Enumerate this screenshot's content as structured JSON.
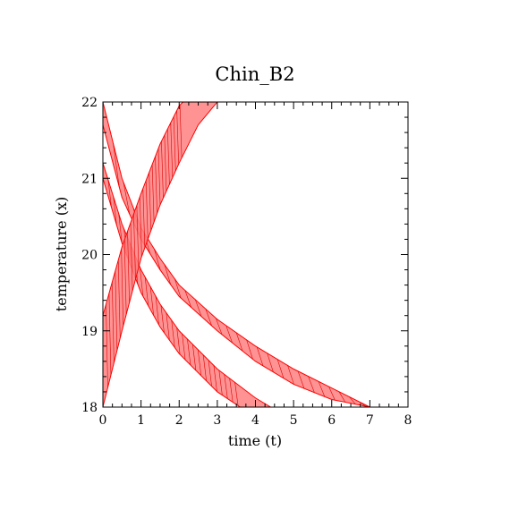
{
  "chart_data": {
    "type": "area",
    "title": "Chin_B2",
    "xlabel": "time (t)",
    "ylabel": "temperature (x)",
    "xlim": [
      0,
      8
    ],
    "ylim": [
      18,
      22
    ],
    "xticks": [
      "0",
      "1",
      "2",
      "3",
      "4",
      "5",
      "6",
      "7",
      "8"
    ],
    "yticks": [
      "18",
      "19",
      "20",
      "21",
      "22"
    ],
    "grid": false,
    "series_color": "#ff0000",
    "fill_color": "#ff8080",
    "series": [
      {
        "kind": "reachable-band",
        "upper": [
          [
            0,
            22.0
          ],
          [
            0.5,
            21.0
          ],
          [
            1,
            20.35
          ],
          [
            1.5,
            19.95
          ],
          [
            2,
            19.6
          ],
          [
            3,
            19.15
          ],
          [
            4,
            18.8
          ],
          [
            5,
            18.5
          ],
          [
            6,
            18.25
          ],
          [
            7,
            18.0
          ]
        ],
        "lower": [
          [
            0,
            21.7
          ],
          [
            0.5,
            20.75
          ],
          [
            1,
            20.2
          ],
          [
            1.5,
            19.8
          ],
          [
            2,
            19.45
          ],
          [
            3,
            19.0
          ],
          [
            4,
            18.6
          ],
          [
            5,
            18.3
          ],
          [
            6,
            18.1
          ],
          [
            7,
            18.0
          ]
        ]
      },
      {
        "kind": "reachable-band",
        "upper": [
          [
            0,
            21.2
          ],
          [
            0.5,
            20.4
          ],
          [
            1,
            19.8
          ],
          [
            1.5,
            19.35
          ],
          [
            2,
            19.0
          ],
          [
            3,
            18.5
          ],
          [
            4,
            18.12
          ],
          [
            4.4,
            18.0
          ]
        ],
        "lower": [
          [
            0,
            21.0
          ],
          [
            0.5,
            20.15
          ],
          [
            1,
            19.5
          ],
          [
            1.5,
            19.05
          ],
          [
            2,
            18.7
          ],
          [
            3,
            18.2
          ],
          [
            3.6,
            18.0
          ]
        ]
      },
      {
        "kind": "reachable-band",
        "upper": [
          [
            0,
            19.2
          ],
          [
            0.5,
            20.1
          ],
          [
            1,
            20.8
          ],
          [
            1.5,
            21.45
          ],
          [
            2,
            21.95
          ],
          [
            2.1,
            22.0
          ]
        ],
        "lower": [
          [
            0,
            18.0
          ],
          [
            0.5,
            19.0
          ],
          [
            1,
            19.95
          ],
          [
            1.5,
            20.65
          ],
          [
            2,
            21.2
          ],
          [
            2.5,
            21.7
          ],
          [
            3.0,
            22.0
          ]
        ]
      }
    ]
  }
}
